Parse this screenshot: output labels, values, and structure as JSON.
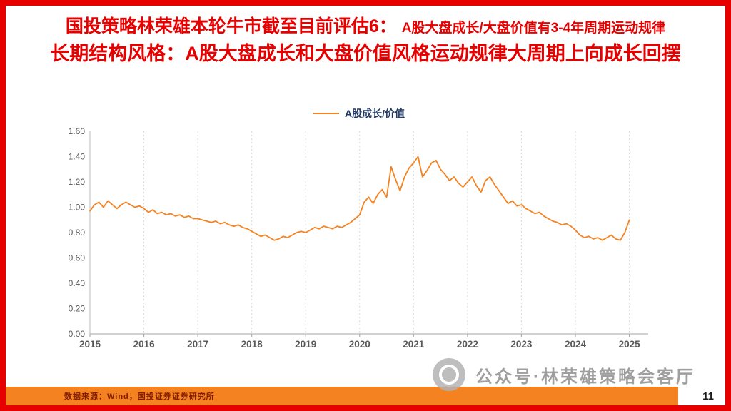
{
  "slide": {
    "title": {
      "line1_main": "国投策略林荣雄本轮牛市截至目前评估6：",
      "line1_sub": "A股大盘成长/大盘价值有3-4年周期运动规律",
      "line2": "长期结构风格：A股大盘成长和大盘价值风格运动规律大周期上向成长回摆"
    },
    "footer": {
      "source": "数据来源：Wind，国投证券证券研究所",
      "page_number": "11"
    },
    "watermark": {
      "text": "公众号·林荣雄策略会客厅",
      "logo_icon": "round-aperture-logo-icon"
    },
    "colors": {
      "title_red": "#e60000",
      "border_red": "#e60000",
      "accent_orange": "#f58220",
      "source_text": "#7f1d00",
      "legend_text": "#1f3864",
      "axis_text": "#595959",
      "gridline": "#d9d9d9",
      "watermark_gray": "#8f8f8f"
    }
  },
  "chart_data": {
    "type": "line",
    "title": "",
    "legend_entries": [
      "A股成长/价值"
    ],
    "legend_position": "top-center",
    "grid": "vertical-dotted",
    "xlabel": "",
    "ylabel": "",
    "xlim": [
      2015,
      2025.35
    ],
    "ylim": [
      0,
      1.6
    ],
    "ytick_step": 0.2,
    "ytick_labels": [
      "0.00",
      "0.20",
      "0.40",
      "0.60",
      "0.80",
      "1.00",
      "1.20",
      "1.40",
      "1.60"
    ],
    "xtick_labels": [
      "2015",
      "2016",
      "2017",
      "2018",
      "2019",
      "2020",
      "2021",
      "2022",
      "2023",
      "2024",
      "2025"
    ],
    "series": [
      {
        "name": "A股成长/价值",
        "color": "#f58220",
        "x_start": 2015,
        "points_per_year": 12,
        "values": [
          0.97,
          1.02,
          1.04,
          1.0,
          1.05,
          1.02,
          0.99,
          1.02,
          1.04,
          1.02,
          1.0,
          1.01,
          0.99,
          0.96,
          0.98,
          0.95,
          0.96,
          0.94,
          0.95,
          0.93,
          0.94,
          0.92,
          0.93,
          0.91,
          0.91,
          0.9,
          0.89,
          0.88,
          0.89,
          0.87,
          0.88,
          0.86,
          0.85,
          0.86,
          0.84,
          0.83,
          0.81,
          0.79,
          0.77,
          0.78,
          0.76,
          0.74,
          0.75,
          0.77,
          0.76,
          0.78,
          0.8,
          0.81,
          0.8,
          0.82,
          0.84,
          0.83,
          0.85,
          0.84,
          0.83,
          0.85,
          0.84,
          0.86,
          0.88,
          0.91,
          0.94,
          1.04,
          1.08,
          1.03,
          1.1,
          1.14,
          1.08,
          1.32,
          1.22,
          1.13,
          1.24,
          1.31,
          1.35,
          1.4,
          1.24,
          1.29,
          1.35,
          1.37,
          1.3,
          1.26,
          1.21,
          1.24,
          1.19,
          1.16,
          1.2,
          1.24,
          1.17,
          1.12,
          1.21,
          1.24,
          1.18,
          1.13,
          1.08,
          1.03,
          1.05,
          1.01,
          1.02,
          0.99,
          0.97,
          0.95,
          0.96,
          0.93,
          0.91,
          0.89,
          0.88,
          0.86,
          0.87,
          0.85,
          0.82,
          0.78,
          0.76,
          0.77,
          0.75,
          0.76,
          0.74,
          0.76,
          0.78,
          0.75,
          0.74,
          0.8,
          0.9
        ]
      }
    ]
  }
}
